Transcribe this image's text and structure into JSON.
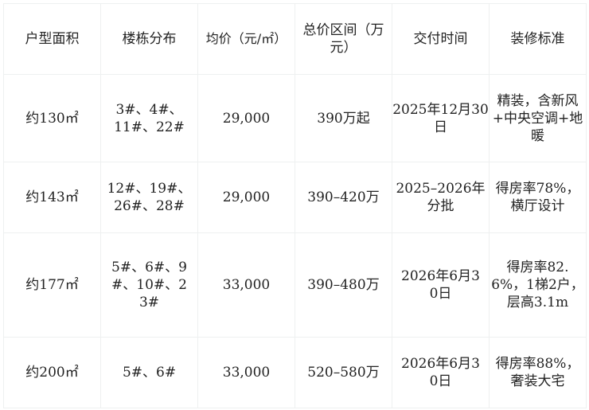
{
  "headers": [
    "户型面积",
    "楼栋分布",
    "均价（元/㎡）",
    "总价区间（万元）",
    "交付时间",
    "装修标准"
  ],
  "rows": [
    [
      "约130㎡",
      "3#、4#、11#、22#",
      "29,000",
      "390万起",
      "2025年12月30日",
      "精装，含新风+中央空调+地暖"
    ],
    [
      "约143㎡",
      "12#、19#、26#、28#",
      "29,000",
      "390–420万",
      "2025–2026年分批",
      "得房率78%，横厅设计"
    ],
    [
      "约177㎡",
      "5#、6#、9#、10#、23#",
      "33,000",
      "390–480万",
      "2026年6月30日",
      "得房率82.6%，1梯2户，层高3.1m"
    ],
    [
      "约200㎡",
      "5#、6#",
      "33,000",
      "520–580万",
      "2026年6月30日",
      "得房率88%，奢装大宅"
    ]
  ]
}
